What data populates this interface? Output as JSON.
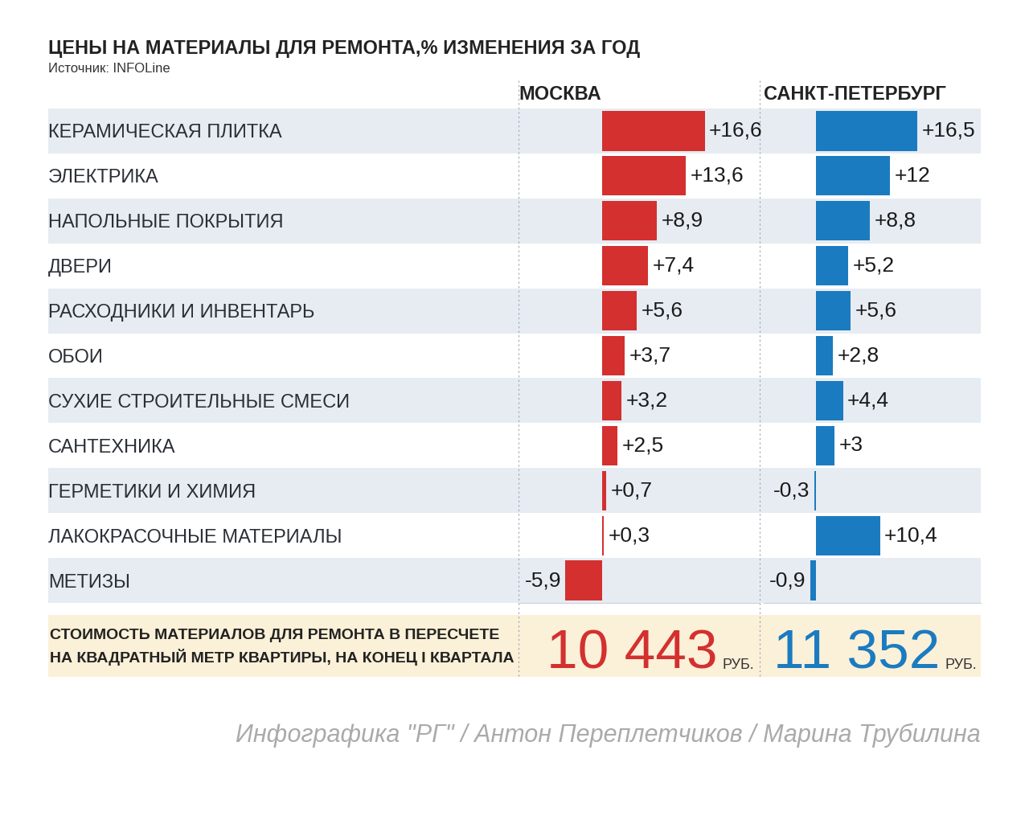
{
  "title": "ЦЕНЫ НА МАТЕРИАЛЫ ДЛЯ РЕМОНТА,% ИЗМЕНЕНИЯ ЗА ГОД",
  "subtitle": "Источник: INFOLine",
  "chart_data": [
    {
      "type": "bar",
      "orientation": "horizontal",
      "title": "МОСКВА",
      "categories": [
        "КЕРАМИЧЕСКАЯ ПЛИТКА",
        "ЭЛЕКТРИКА",
        "НАПОЛЬНЫЕ ПОКРЫТИЯ",
        "ДВЕРИ",
        "РАСХОДНИКИ И ИНВЕНТАРЬ",
        "ОБОИ",
        "СУХИЕ СТРОИТЕЛЬНЫЕ СМЕСИ",
        "САНТЕХНИКА",
        "ГЕРМЕТИКИ И ХИМИЯ",
        "ЛАКОКРАСОЧНЫЕ МАТЕРИАЛЫ",
        "МЕТИЗЫ"
      ],
      "values": [
        16.6,
        13.6,
        8.9,
        7.4,
        5.6,
        3.7,
        3.2,
        2.5,
        0.7,
        0.3,
        -5.9
      ],
      "value_labels": [
        "+16,6",
        "+13,6",
        "+8,9",
        "+7,4",
        "+5,6",
        "+3,7",
        "+3,2",
        "+2,5",
        "+0,7",
        "+0,3",
        "-5,9"
      ],
      "color": "#d3302f",
      "data_labels": true,
      "tick_labels": "y",
      "xlim": [
        -13.5,
        25.5
      ]
    },
    {
      "type": "bar",
      "orientation": "horizontal",
      "title": "САНКТ-ПЕТЕРБУРГ",
      "categories": [
        "КЕРАМИЧЕСКАЯ ПЛИТКА",
        "ЭЛЕКТРИКА",
        "НАПОЛЬНЫЕ ПОКРЫТИЯ",
        "ДВЕРИ",
        "РАСХОДНИКИ И ИНВЕНТАРЬ",
        "ОБОИ",
        "СУХИЕ СТРОИТЕЛЬНЫЕ СМЕСИ",
        "САНТЕХНИКА",
        "ГЕРМЕТИКИ И ХИМИЯ",
        "ЛАКОКРАСОЧНЫЕ МАТЕРИАЛЫ",
        "МЕТИЗЫ"
      ],
      "values": [
        16.5,
        12,
        8.8,
        5.2,
        5.6,
        2.8,
        4.4,
        3,
        -0.3,
        10.4,
        -0.9
      ],
      "value_labels": [
        "+16,5",
        "+12",
        "+8,8",
        "+5,2",
        "+5,6",
        "+2,8",
        "+4,4",
        "+3",
        "-0,3",
        "+10,4",
        "-0,9"
      ],
      "color": "#1b7bc0",
      "data_labels": true,
      "tick_labels": false,
      "xlim": [
        -8.5,
        26.8
      ]
    }
  ],
  "summary": {
    "label": "СТОИМОСТЬ МАТЕРИАЛОВ ДЛЯ РЕМОНТА В ПЕРЕСЧЕТЕ\nНА КВАДРАТНЫЙ МЕТР КВАРТИРЫ, НА КОНЕЦ I КВАРТАЛА",
    "values": [
      {
        "value": 10443,
        "label": "10 443",
        "unit": "РУБ."
      },
      {
        "value": 11352,
        "label": "11 352",
        "unit": "РУБ."
      }
    ]
  },
  "credit": "Инфографика \"РГ\" / Антон Переплетчиков / Марина Трубилина"
}
